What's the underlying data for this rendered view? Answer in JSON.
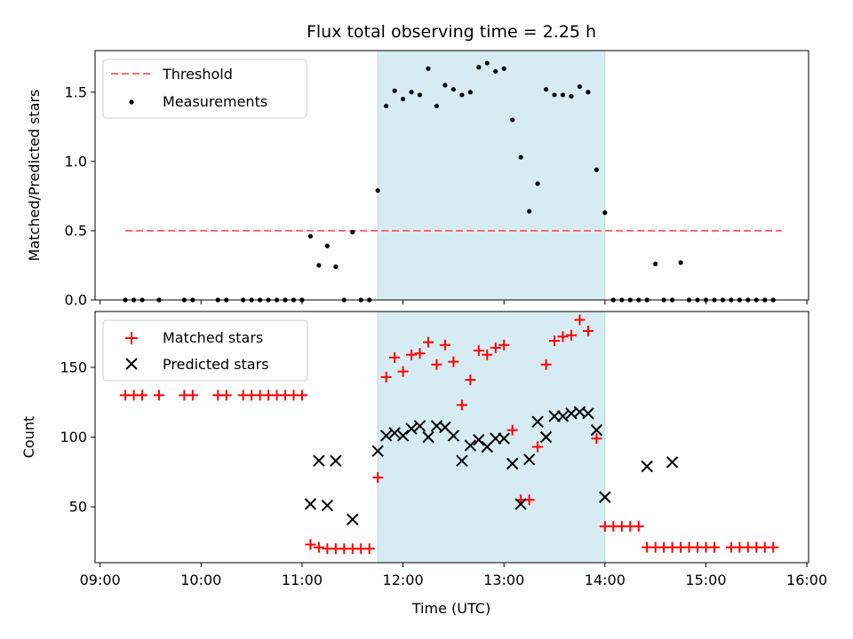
{
  "chart_data": [
    {
      "type": "scatter",
      "title": "Flux total observing time = 2.25 h",
      "ylabel": "Matched/Predicted stars",
      "xlim": [
        "08:57",
        "16:01"
      ],
      "ylim": [
        0,
        1.8
      ],
      "yticks": [
        0.0,
        0.5,
        1.0,
        1.5
      ],
      "ytick_labels": [
        "0.0",
        "0.5",
        "1.0",
        "1.5"
      ],
      "shaded_span": [
        "11:45",
        "14:00"
      ],
      "shade_color": "#add8e6",
      "legend": {
        "placement": "top-left",
        "entries": [
          "Threshold",
          "Measurements"
        ]
      },
      "series": [
        {
          "name": "Threshold",
          "style": "dashed-line",
          "color": "#ff6b6b",
          "x": [
            "09:15",
            "15:45"
          ],
          "y": [
            0.5,
            0.5
          ]
        },
        {
          "name": "Measurements",
          "style": "dot",
          "color": "#000000",
          "x": [
            "09:15",
            "09:20",
            "09:25",
            "09:35",
            "09:50",
            "09:55",
            "10:10",
            "10:15",
            "10:25",
            "10:30",
            "10:35",
            "10:40",
            "10:45",
            "10:50",
            "10:55",
            "11:00",
            "11:05",
            "11:10",
            "11:15",
            "11:20",
            "11:25",
            "11:30",
            "11:35",
            "11:40",
            "11:45",
            "11:50",
            "11:55",
            "12:00",
            "12:05",
            "12:10",
            "12:15",
            "12:20",
            "12:25",
            "12:30",
            "12:35",
            "12:40",
            "12:45",
            "12:50",
            "12:55",
            "13:00",
            "13:05",
            "13:10",
            "13:15",
            "13:20",
            "13:25",
            "13:30",
            "13:35",
            "13:40",
            "13:45",
            "13:50",
            "13:55",
            "14:00",
            "14:05",
            "14:10",
            "14:15",
            "14:20",
            "14:25",
            "14:30",
            "14:35",
            "14:40",
            "14:45",
            "14:50",
            "14:55",
            "15:00",
            "15:05",
            "15:10",
            "15:15",
            "15:20",
            "15:25",
            "15:30",
            "15:35",
            "15:40"
          ],
          "y": [
            0,
            0,
            0,
            0,
            0,
            0,
            0,
            0,
            0,
            0,
            0,
            0,
            0,
            0,
            0,
            0,
            0.46,
            0.25,
            0.39,
            0.24,
            0,
            0.49,
            0,
            0,
            0.79,
            1.4,
            1.51,
            1.45,
            1.5,
            1.48,
            1.67,
            1.4,
            1.55,
            1.52,
            1.48,
            1.5,
            1.68,
            1.71,
            1.65,
            1.67,
            1.3,
            1.03,
            0.64,
            0.84,
            1.52,
            1.48,
            1.48,
            1.47,
            1.54,
            1.5,
            0.94,
            0.63,
            0,
            0,
            0,
            0,
            0,
            0.26,
            0,
            0,
            0.27,
            0,
            0,
            0,
            0,
            0,
            0,
            0,
            0,
            0,
            0,
            0
          ]
        }
      ]
    },
    {
      "type": "scatter",
      "xlabel": "Time (UTC)",
      "ylabel": "Count",
      "xlim": [
        "08:57",
        "16:01"
      ],
      "ylim": [
        10,
        190
      ],
      "xticks": [
        "09:00",
        "10:00",
        "11:00",
        "12:00",
        "13:00",
        "14:00",
        "15:00",
        "16:00"
      ],
      "yticks": [
        50,
        100,
        150
      ],
      "shaded_span": [
        "11:45",
        "14:00"
      ],
      "shade_color": "#add8e6",
      "legend": {
        "placement": "top-left",
        "entries": [
          "Matched stars",
          "Predicted stars"
        ]
      },
      "series": [
        {
          "name": "Matched stars",
          "style": "plus",
          "color": "#ff0000",
          "x": [
            "09:15",
            "09:20",
            "09:25",
            "09:35",
            "09:50",
            "09:55",
            "10:10",
            "10:15",
            "10:25",
            "10:30",
            "10:35",
            "10:40",
            "10:45",
            "10:50",
            "10:55",
            "11:00",
            "11:05",
            "11:10",
            "11:15",
            "11:20",
            "11:25",
            "11:30",
            "11:35",
            "11:40",
            "11:45",
            "11:50",
            "11:55",
            "12:00",
            "12:05",
            "12:10",
            "12:15",
            "12:20",
            "12:25",
            "12:30",
            "12:35",
            "12:40",
            "12:45",
            "12:50",
            "12:55",
            "13:00",
            "13:05",
            "13:10",
            "13:15",
            "13:20",
            "13:25",
            "13:30",
            "13:35",
            "13:40",
            "13:45",
            "13:50",
            "13:55",
            "14:00",
            "14:05",
            "14:10",
            "14:15",
            "14:20",
            "14:25",
            "14:30",
            "14:35",
            "14:40",
            "14:45",
            "14:50",
            "14:55",
            "15:00",
            "15:05",
            "15:15",
            "15:20",
            "15:25",
            "15:30",
            "15:35",
            "15:40"
          ],
          "y": [
            130,
            130,
            130,
            130,
            130,
            130,
            130,
            130,
            130,
            130,
            130,
            130,
            130,
            130,
            130,
            130,
            23,
            21,
            20,
            20,
            20,
            20,
            20,
            20,
            71,
            143,
            157,
            147,
            159,
            160,
            168,
            152,
            166,
            154,
            123,
            141,
            162,
            159,
            164,
            166,
            105,
            55,
            55,
            93,
            152,
            169,
            172,
            173,
            184,
            176,
            99,
            36,
            36,
            36,
            36,
            36,
            21,
            21,
            21,
            21,
            21,
            21,
            21,
            21,
            21,
            21,
            21,
            21,
            21,
            21,
            21
          ]
        },
        {
          "name": "Predicted stars",
          "style": "x",
          "color": "#000000",
          "x": [
            "11:05",
            "11:10",
            "11:15",
            "11:20",
            "11:30",
            "11:45",
            "11:50",
            "11:55",
            "12:00",
            "12:05",
            "12:10",
            "12:15",
            "12:20",
            "12:25",
            "12:30",
            "12:35",
            "12:40",
            "12:45",
            "12:50",
            "12:55",
            "13:00",
            "13:05",
            "13:10",
            "13:15",
            "13:20",
            "13:25",
            "13:30",
            "13:35",
            "13:40",
            "13:45",
            "13:50",
            "13:55",
            "14:00",
            "14:25",
            "14:40"
          ],
          "y": [
            52,
            83,
            51,
            83,
            41,
            90,
            101,
            103,
            101,
            106,
            108,
            100,
            108,
            107,
            101,
            83,
            94,
            98,
            93,
            99,
            99,
            81,
            52,
            84,
            111,
            100,
            115,
            115,
            117,
            118,
            117,
            105,
            57,
            79,
            82
          ]
        }
      ]
    }
  ]
}
